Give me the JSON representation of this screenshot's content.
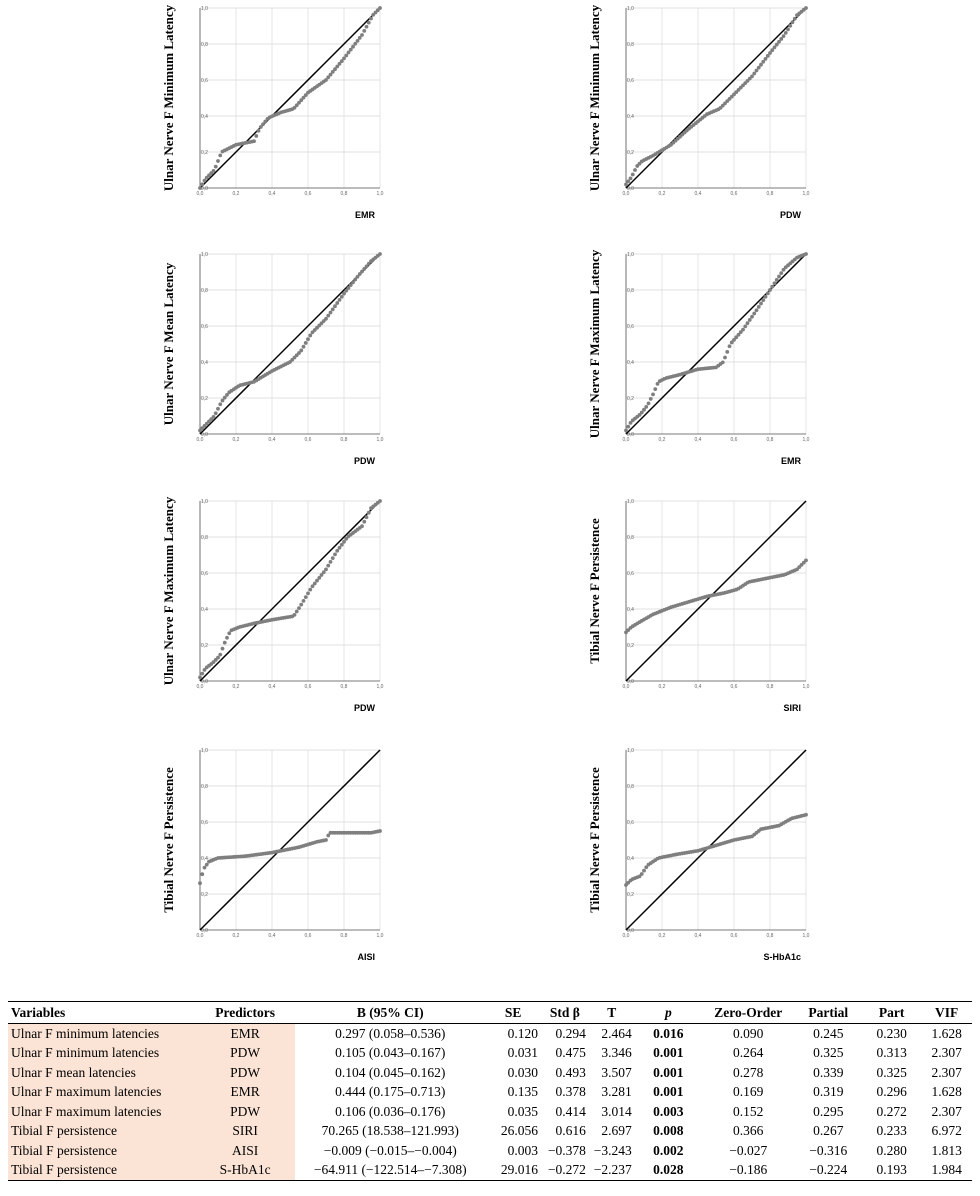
{
  "charts": [
    {
      "ylabel": "Ulnar Nerve F Minimum Latency",
      "xlabel": "EMR"
    },
    {
      "ylabel": "Ulnar Nerve F Minimum Latency",
      "xlabel": "PDW"
    },
    {
      "ylabel": "Ulnar Nerve F Mean Latency",
      "xlabel": "PDW"
    },
    {
      "ylabel": "Ulnar Nerve F Maximum Latency",
      "xlabel": "EMR"
    },
    {
      "ylabel": "Ulnar Nerve F Maximum Latency",
      "xlabel": "PDW"
    },
    {
      "ylabel": "Tibial Nerve F Persistence",
      "xlabel": "SIRI"
    },
    {
      "ylabel": "Tibial Nerve F Persistence",
      "xlabel": "AISI"
    },
    {
      "ylabel": "Tibial Nerve F Persistence",
      "xlabel": "S-HbA1c"
    }
  ],
  "chart_data": [
    {
      "type": "scatter",
      "ylabel": "Ulnar Nerve F Minimum Latency",
      "xlabel": "EMR",
      "xlim": [
        0,
        1
      ],
      "ylim": [
        0,
        1
      ],
      "reference_line": [
        [
          0,
          0
        ],
        [
          1,
          1
        ]
      ],
      "xticks": [
        "0,0",
        "0,2",
        "0,4",
        "0,6",
        "0,8",
        "1,0"
      ],
      "yticks": [
        "0,0",
        "0,2",
        "0,4",
        "0,6",
        "0,8",
        "1,0"
      ],
      "curve": [
        [
          0,
          0
        ],
        [
          0.03,
          0.05
        ],
        [
          0.08,
          0.1
        ],
        [
          0.1,
          0.15
        ],
        [
          0.12,
          0.2
        ],
        [
          0.16,
          0.22
        ],
        [
          0.2,
          0.24
        ],
        [
          0.3,
          0.26
        ],
        [
          0.33,
          0.33
        ],
        [
          0.38,
          0.39
        ],
        [
          0.45,
          0.42
        ],
        [
          0.52,
          0.44
        ],
        [
          0.6,
          0.53
        ],
        [
          0.7,
          0.6
        ],
        [
          0.8,
          0.72
        ],
        [
          0.9,
          0.85
        ],
        [
          0.96,
          0.96
        ],
        [
          1.0,
          1.0
        ]
      ]
    },
    {
      "type": "scatter",
      "ylabel": "Ulnar Nerve F Minimum Latency",
      "xlabel": "PDW",
      "xlim": [
        0,
        1
      ],
      "ylim": [
        0,
        1
      ],
      "reference_line": [
        [
          0,
          0
        ],
        [
          1,
          1
        ]
      ],
      "xticks": [
        "0,0",
        "0,2",
        "0,4",
        "0,6",
        "0,8",
        "1,0"
      ],
      "yticks": [
        "0,0",
        "0,2",
        "0,4",
        "0,6",
        "0,8",
        "1,0"
      ],
      "curve": [
        [
          0,
          0.02
        ],
        [
          0.03,
          0.06
        ],
        [
          0.06,
          0.12
        ],
        [
          0.09,
          0.15
        ],
        [
          0.15,
          0.18
        ],
        [
          0.25,
          0.24
        ],
        [
          0.35,
          0.33
        ],
        [
          0.45,
          0.41
        ],
        [
          0.52,
          0.44
        ],
        [
          0.6,
          0.52
        ],
        [
          0.7,
          0.62
        ],
        [
          0.8,
          0.75
        ],
        [
          0.88,
          0.85
        ],
        [
          0.95,
          0.96
        ],
        [
          1.0,
          1.0
        ]
      ]
    },
    {
      "type": "scatter",
      "ylabel": "Ulnar Nerve F Mean Latency",
      "xlabel": "PDW",
      "xlim": [
        0,
        1
      ],
      "ylim": [
        0,
        1
      ],
      "reference_line": [
        [
          0,
          0
        ],
        [
          1,
          1
        ]
      ],
      "xticks": [
        "0,0",
        "0,2",
        "0,4",
        "0,6",
        "0,8",
        "1,0"
      ],
      "yticks": [
        "0,0",
        "0,2",
        "0,4",
        "0,6",
        "0,8",
        "1,0"
      ],
      "curve": [
        [
          0,
          0.02
        ],
        [
          0.04,
          0.06
        ],
        [
          0.08,
          0.1
        ],
        [
          0.12,
          0.18
        ],
        [
          0.16,
          0.23
        ],
        [
          0.22,
          0.27
        ],
        [
          0.3,
          0.29
        ],
        [
          0.4,
          0.35
        ],
        [
          0.5,
          0.4
        ],
        [
          0.56,
          0.46
        ],
        [
          0.62,
          0.56
        ],
        [
          0.7,
          0.64
        ],
        [
          0.8,
          0.78
        ],
        [
          0.88,
          0.88
        ],
        [
          0.95,
          0.96
        ],
        [
          1.0,
          1.0
        ]
      ]
    },
    {
      "type": "scatter",
      "ylabel": "Ulnar Nerve F Maximum Latency",
      "xlabel": "EMR",
      "xlim": [
        0,
        1
      ],
      "ylim": [
        0,
        1
      ],
      "reference_line": [
        [
          0,
          0
        ],
        [
          1,
          1
        ]
      ],
      "xticks": [
        "0,0",
        "0,2",
        "0,4",
        "0,6",
        "0,8",
        "1,0"
      ],
      "yticks": [
        "0,0",
        "0,2",
        "0,4",
        "0,6",
        "0,8",
        "1,0"
      ],
      "curve": [
        [
          0,
          0.02
        ],
        [
          0.03,
          0.07
        ],
        [
          0.08,
          0.11
        ],
        [
          0.12,
          0.16
        ],
        [
          0.15,
          0.22
        ],
        [
          0.18,
          0.29
        ],
        [
          0.22,
          0.31
        ],
        [
          0.3,
          0.33
        ],
        [
          0.4,
          0.36
        ],
        [
          0.5,
          0.37
        ],
        [
          0.54,
          0.4
        ],
        [
          0.58,
          0.5
        ],
        [
          0.65,
          0.58
        ],
        [
          0.72,
          0.68
        ],
        [
          0.8,
          0.8
        ],
        [
          0.88,
          0.92
        ],
        [
          0.95,
          0.98
        ],
        [
          1.0,
          1.0
        ]
      ]
    },
    {
      "type": "scatter",
      "ylabel": "Ulnar Nerve F Maximum Latency",
      "xlabel": "PDW",
      "xlim": [
        0,
        1
      ],
      "ylim": [
        0,
        1
      ],
      "reference_line": [
        [
          0,
          0
        ],
        [
          1,
          1
        ]
      ],
      "xticks": [
        "0,0",
        "0,2",
        "0,4",
        "0,6",
        "0,8",
        "1,0"
      ],
      "yticks": [
        "0,0",
        "0,2",
        "0,4",
        "0,6",
        "0,8",
        "1,0"
      ],
      "curve": [
        [
          0,
          0.02
        ],
        [
          0.03,
          0.07
        ],
        [
          0.07,
          0.1
        ],
        [
          0.11,
          0.14
        ],
        [
          0.14,
          0.22
        ],
        [
          0.17,
          0.28
        ],
        [
          0.22,
          0.3
        ],
        [
          0.3,
          0.32
        ],
        [
          0.4,
          0.34
        ],
        [
          0.52,
          0.36
        ],
        [
          0.56,
          0.42
        ],
        [
          0.62,
          0.52
        ],
        [
          0.7,
          0.62
        ],
        [
          0.76,
          0.72
        ],
        [
          0.82,
          0.8
        ],
        [
          0.9,
          0.86
        ],
        [
          0.95,
          0.96
        ],
        [
          1.0,
          1.0
        ]
      ]
    },
    {
      "type": "scatter",
      "ylabel": "Tibial Nerve F Persistence",
      "xlabel": "SIRI",
      "xlim": [
        0,
        1
      ],
      "ylim": [
        0,
        1
      ],
      "reference_line": [
        [
          0,
          0
        ],
        [
          1,
          1
        ]
      ],
      "xticks": [
        "0,0",
        "0,2",
        "0,4",
        "0,6",
        "0,8",
        "1,0"
      ],
      "yticks": [
        "0,0",
        "0,2",
        "0,4",
        "0,6",
        "0,8",
        "1,0"
      ],
      "curve": [
        [
          0,
          0.27
        ],
        [
          0.03,
          0.3
        ],
        [
          0.08,
          0.33
        ],
        [
          0.15,
          0.37
        ],
        [
          0.25,
          0.41
        ],
        [
          0.35,
          0.44
        ],
        [
          0.45,
          0.47
        ],
        [
          0.55,
          0.49
        ],
        [
          0.62,
          0.51
        ],
        [
          0.68,
          0.55
        ],
        [
          0.78,
          0.57
        ],
        [
          0.88,
          0.59
        ],
        [
          0.95,
          0.62
        ],
        [
          1.0,
          0.67
        ]
      ]
    },
    {
      "type": "scatter",
      "ylabel": "Tibial Nerve F Persistence",
      "xlabel": "AISI",
      "xlim": [
        0,
        1
      ],
      "ylim": [
        0,
        1
      ],
      "reference_line": [
        [
          0,
          0
        ],
        [
          1,
          1
        ]
      ],
      "xticks": [
        "0,0",
        "0,2",
        "0,4",
        "0,6",
        "0,8",
        "1,0"
      ],
      "yticks": [
        "0,0",
        "0,2",
        "0,4",
        "0,6",
        "0,8",
        "1,0"
      ],
      "curve": [
        [
          0,
          0.26
        ],
        [
          0.02,
          0.34
        ],
        [
          0.05,
          0.38
        ],
        [
          0.1,
          0.4
        ],
        [
          0.25,
          0.41
        ],
        [
          0.4,
          0.43
        ],
        [
          0.55,
          0.46
        ],
        [
          0.65,
          0.49
        ],
        [
          0.7,
          0.5
        ],
        [
          0.72,
          0.54
        ],
        [
          0.85,
          0.54
        ],
        [
          0.95,
          0.54
        ],
        [
          1.0,
          0.55
        ]
      ]
    },
    {
      "type": "scatter",
      "ylabel": "Tibial Nerve F Persistence",
      "xlabel": "S-HbA1c",
      "xlim": [
        0,
        1
      ],
      "ylim": [
        0,
        1
      ],
      "reference_line": [
        [
          0,
          0
        ],
        [
          1,
          1
        ]
      ],
      "xticks": [
        "0,0",
        "0,2",
        "0,4",
        "0,6",
        "0,8",
        "1,0"
      ],
      "yticks": [
        "0,0",
        "0,2",
        "0,4",
        "0,6",
        "0,8",
        "1,0"
      ],
      "curve": [
        [
          0,
          0.25
        ],
        [
          0.03,
          0.28
        ],
        [
          0.08,
          0.3
        ],
        [
          0.12,
          0.36
        ],
        [
          0.18,
          0.4
        ],
        [
          0.28,
          0.42
        ],
        [
          0.4,
          0.44
        ],
        [
          0.5,
          0.47
        ],
        [
          0.6,
          0.5
        ],
        [
          0.7,
          0.52
        ],
        [
          0.75,
          0.56
        ],
        [
          0.85,
          0.58
        ],
        [
          0.92,
          0.62
        ],
        [
          1.0,
          0.64
        ]
      ]
    }
  ],
  "table": {
    "headers": [
      "Variables",
      "Predictors",
      "B (95% CI)",
      "SE",
      "Std β",
      "T",
      "p",
      "Zero-Order",
      "Partial",
      "Part",
      "VIF"
    ],
    "rows": [
      [
        "Ulnar F minimum latencies",
        "EMR",
        "0.297 (0.058–0.536)",
        "0.120",
        "0.294",
        "2.464",
        "0.016",
        "0.090",
        "0.245",
        "0.230",
        "1.628"
      ],
      [
        "Ulnar F minimum latencies",
        "PDW",
        "0.105 (0.043–0.167)",
        "0.031",
        "0.475",
        "3.346",
        "0.001",
        "0.264",
        "0.325",
        "0.313",
        "2.307"
      ],
      [
        "Ulnar F mean latencies",
        "PDW",
        "0.104 (0.045–0.162)",
        "0.030",
        "0.493",
        "3.507",
        "0.001",
        "0.278",
        "0.339",
        "0.325",
        "2.307"
      ],
      [
        "Ulnar F maximum latencies",
        "EMR",
        "0.444 (0.175–0.713)",
        "0.135",
        "0.378",
        "3.281",
        "0.001",
        "0.169",
        "0.319",
        "0.296",
        "1.628"
      ],
      [
        "Ulnar F maximum latencies",
        "PDW",
        "0.106 (0.036–0.176)",
        "0.035",
        "0.414",
        "3.014",
        "0.003",
        "0.152",
        "0.295",
        "0.272",
        "2.307"
      ],
      [
        "Tibial F persistence",
        "SIRI",
        "70.265 (18.538–121.993)",
        "26.056",
        "0.616",
        "2.697",
        "0.008",
        "0.366",
        "0.267",
        "0.233",
        "6.972"
      ],
      [
        "Tibial F persistence",
        "AISI",
        "−0.009 (−0.015–−0.004)",
        "0.003",
        "−0.378",
        "−3.243",
        "0.002",
        "−0.027",
        "−0.316",
        "0.280",
        "1.813"
      ],
      [
        "Tibial F persistence",
        "S-HbA1c",
        "−64.911 (−122.514–−7.308)",
        "29.016",
        "−0.272",
        "−2.237",
        "0.028",
        "−0.186",
        "−0.224",
        "0.193",
        "1.984"
      ]
    ]
  }
}
